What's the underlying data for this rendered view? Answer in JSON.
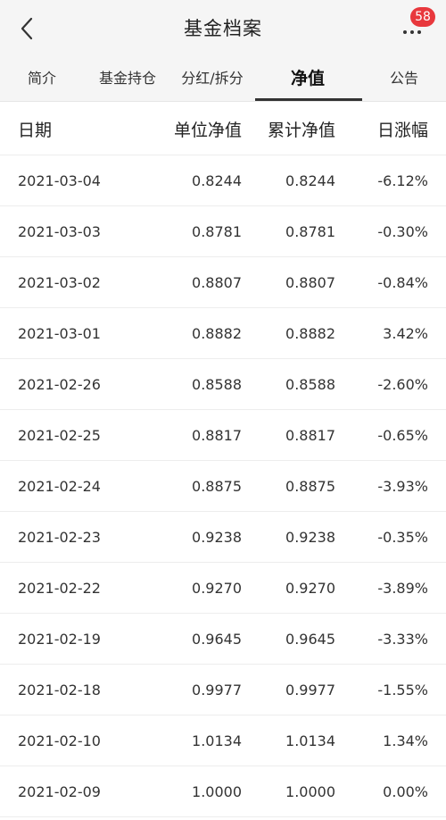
{
  "header": {
    "title": "基金档案",
    "badge_count": "58"
  },
  "tabs": [
    {
      "label": "简介",
      "active": false
    },
    {
      "label": "基金持仓",
      "active": false
    },
    {
      "label": "分红/拆分",
      "active": false
    },
    {
      "label": "净值",
      "active": true
    },
    {
      "label": "公告",
      "active": false
    }
  ],
  "table": {
    "headers": {
      "date": "日期",
      "unit_nav": "单位净值",
      "acc_nav": "累计净值",
      "daily_change": "日涨幅"
    },
    "rows": [
      {
        "date": "2021-03-04",
        "unit_nav": "0.8244",
        "acc_nav": "0.8244",
        "daily_change": "-6.12%"
      },
      {
        "date": "2021-03-03",
        "unit_nav": "0.8781",
        "acc_nav": "0.8781",
        "daily_change": "-0.30%"
      },
      {
        "date": "2021-03-02",
        "unit_nav": "0.8807",
        "acc_nav": "0.8807",
        "daily_change": "-0.84%"
      },
      {
        "date": "2021-03-01",
        "unit_nav": "0.8882",
        "acc_nav": "0.8882",
        "daily_change": "3.42%"
      },
      {
        "date": "2021-02-26",
        "unit_nav": "0.8588",
        "acc_nav": "0.8588",
        "daily_change": "-2.60%"
      },
      {
        "date": "2021-02-25",
        "unit_nav": "0.8817",
        "acc_nav": "0.8817",
        "daily_change": "-0.65%"
      },
      {
        "date": "2021-02-24",
        "unit_nav": "0.8875",
        "acc_nav": "0.8875",
        "daily_change": "-3.93%"
      },
      {
        "date": "2021-02-23",
        "unit_nav": "0.9238",
        "acc_nav": "0.9238",
        "daily_change": "-0.35%"
      },
      {
        "date": "2021-02-22",
        "unit_nav": "0.9270",
        "acc_nav": "0.9270",
        "daily_change": "-3.89%"
      },
      {
        "date": "2021-02-19",
        "unit_nav": "0.9645",
        "acc_nav": "0.9645",
        "daily_change": "-3.33%"
      },
      {
        "date": "2021-02-18",
        "unit_nav": "0.9977",
        "acc_nav": "0.9977",
        "daily_change": "-1.55%"
      },
      {
        "date": "2021-02-10",
        "unit_nav": "1.0134",
        "acc_nav": "1.0134",
        "daily_change": "1.34%"
      },
      {
        "date": "2021-02-09",
        "unit_nav": "1.0000",
        "acc_nav": "1.0000",
        "daily_change": "0.00%"
      }
    ]
  },
  "icons": {
    "back": "chevron-left-icon",
    "more": "more-dots-icon"
  }
}
